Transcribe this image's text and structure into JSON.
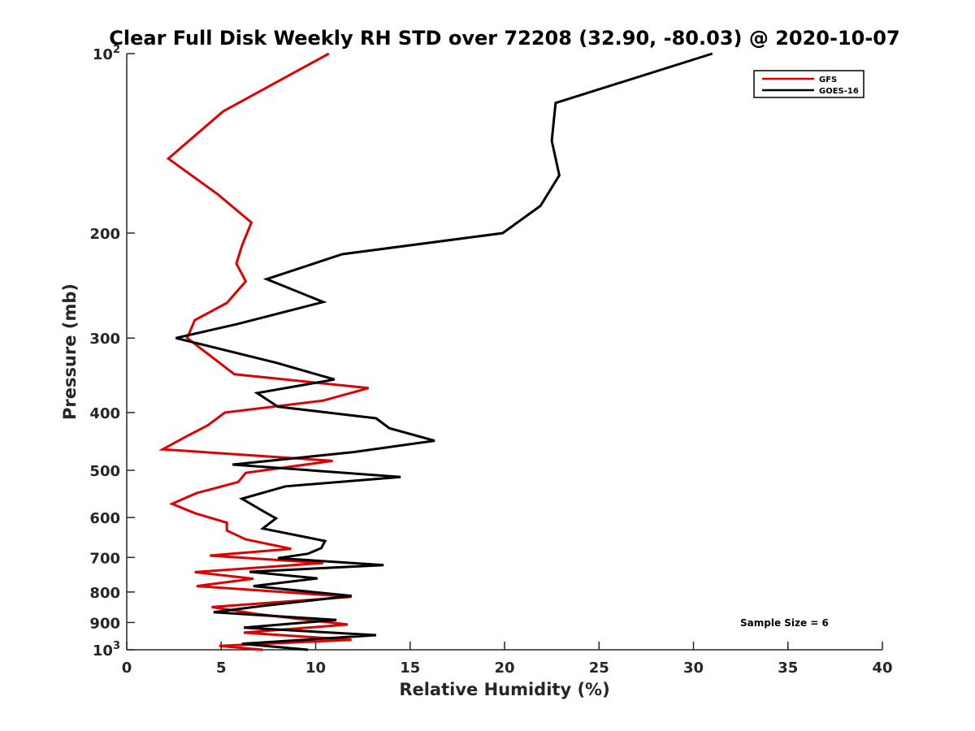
{
  "chart_data": {
    "type": "line",
    "title": "Clear Full Disk Weekly RH STD over 72208 (32.90, -80.03) @ 2020-10-07",
    "xlabel": "Relative Humidity (%)",
    "ylabel": "Pressure (mb)",
    "xlim": [
      0,
      40
    ],
    "ylim": [
      100,
      1000
    ],
    "y_scale": "log",
    "y_reversed": true,
    "grid": false,
    "legend_position": "top-right",
    "x_ticks": [
      {
        "value": 0,
        "label": "0"
      },
      {
        "value": 5,
        "label": "5"
      },
      {
        "value": 10,
        "label": "10"
      },
      {
        "value": 15,
        "label": "15"
      },
      {
        "value": 20,
        "label": "20"
      },
      {
        "value": 25,
        "label": "25"
      },
      {
        "value": 30,
        "label": "30"
      },
      {
        "value": 35,
        "label": "35"
      },
      {
        "value": 40,
        "label": "40"
      }
    ],
    "y_ticks": [
      {
        "value": 100,
        "label": "10",
        "sup": "2"
      },
      {
        "value": 200,
        "label": "200",
        "sup": ""
      },
      {
        "value": 300,
        "label": "300",
        "sup": ""
      },
      {
        "value": 400,
        "label": "400",
        "sup": ""
      },
      {
        "value": 500,
        "label": "500",
        "sup": ""
      },
      {
        "value": 600,
        "label": "600",
        "sup": ""
      },
      {
        "value": 700,
        "label": "700",
        "sup": ""
      },
      {
        "value": 800,
        "label": "800",
        "sup": ""
      },
      {
        "value": 900,
        "label": "900",
        "sup": ""
      },
      {
        "value": 1000,
        "label": "10",
        "sup": "3"
      }
    ],
    "annotation": "Sample Size = 6",
    "series": [
      {
        "name": "GFS",
        "color": "#e00000",
        "points": [
          [
            10.7,
            100
          ],
          [
            5.1,
            125
          ],
          [
            2.2,
            150
          ],
          [
            4.8,
            172
          ],
          [
            6.6,
            192
          ],
          [
            6.1,
            210
          ],
          [
            5.8,
            225
          ],
          [
            6.3,
            241
          ],
          [
            5.3,
            262
          ],
          [
            3.6,
            280
          ],
          [
            3.2,
            300
          ],
          [
            5.7,
            345
          ],
          [
            12.8,
            364
          ],
          [
            10.4,
            382
          ],
          [
            5.2,
            400
          ],
          [
            4.3,
            420
          ],
          [
            3.2,
            438
          ],
          [
            1.9,
            461
          ],
          [
            10.9,
            482
          ],
          [
            6.3,
            505
          ],
          [
            5.9,
            523
          ],
          [
            3.7,
            546
          ],
          [
            2.4,
            569
          ],
          [
            3.6,
            590
          ],
          [
            5.3,
            612
          ],
          [
            5.3,
            631
          ],
          [
            6.3,
            653
          ],
          [
            8.7,
            677
          ],
          [
            4.4,
            695
          ],
          [
            10.4,
            715
          ],
          [
            3.6,
            741
          ],
          [
            6.7,
            760
          ],
          [
            3.7,
            782
          ],
          [
            11.9,
            815
          ],
          [
            4.5,
            848
          ],
          [
            7.0,
            872
          ],
          [
            11.7,
            907
          ],
          [
            6.2,
            936
          ],
          [
            11.9,
            962
          ],
          [
            4.9,
            985
          ],
          [
            7.2,
            1000
          ]
        ]
      },
      {
        "name": "GOES-16",
        "color": "#000000",
        "points": [
          [
            31.0,
            100
          ],
          [
            22.7,
            121
          ],
          [
            22.5,
            140
          ],
          [
            22.9,
            160
          ],
          [
            21.9,
            180
          ],
          [
            19.9,
            200
          ],
          [
            11.4,
            217
          ],
          [
            7.4,
            239
          ],
          [
            10.4,
            261
          ],
          [
            5.9,
            284
          ],
          [
            2.6,
            300
          ],
          [
            7.9,
            330
          ],
          [
            11.0,
            352
          ],
          [
            6.9,
            371
          ],
          [
            8.0,
            391
          ],
          [
            13.2,
            409
          ],
          [
            13.9,
            425
          ],
          [
            16.3,
            446
          ],
          [
            12.0,
            466
          ],
          [
            5.6,
            489
          ],
          [
            14.5,
            513
          ],
          [
            8.4,
            532
          ],
          [
            6.1,
            558
          ],
          [
            7.2,
            585
          ],
          [
            7.9,
            602
          ],
          [
            7.2,
            626
          ],
          [
            10.5,
            657
          ],
          [
            10.3,
            675
          ],
          [
            9.6,
            690
          ],
          [
            8.0,
            702
          ],
          [
            13.6,
            721
          ],
          [
            6.5,
            740
          ],
          [
            10.1,
            759
          ],
          [
            6.7,
            782
          ],
          [
            11.9,
            812
          ],
          [
            7.1,
            845
          ],
          [
            4.6,
            865
          ],
          [
            11.1,
            891
          ],
          [
            6.2,
            918
          ],
          [
            13.2,
            945
          ],
          [
            6.1,
            977
          ],
          [
            9.6,
            1000
          ]
        ]
      }
    ]
  }
}
